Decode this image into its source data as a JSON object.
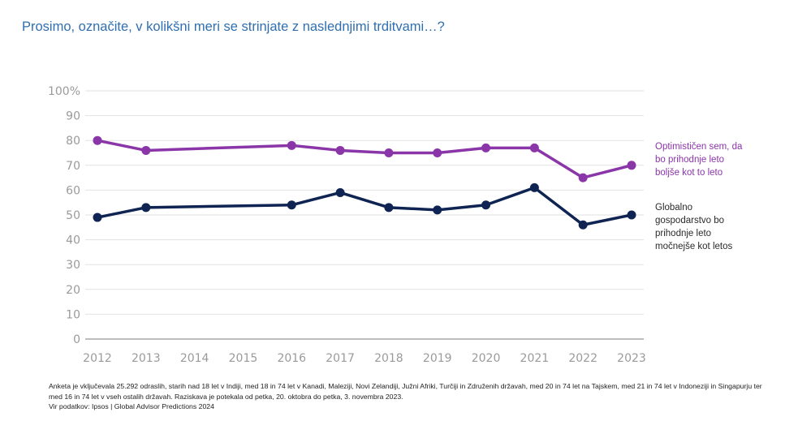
{
  "title": "Prosimo, označite, v kolikšni meri se strinjate z naslednjimi trditvami…?",
  "chart_data": {
    "type": "line",
    "categories": [
      "2012",
      "2013",
      "2014",
      "2015",
      "2016",
      "2017",
      "2018",
      "2019",
      "2020",
      "2021",
      "2022",
      "2023"
    ],
    "y_ticks": [
      "0",
      "10",
      "20",
      "30",
      "40",
      "50",
      "60",
      "70",
      "80",
      "90",
      "100%"
    ],
    "ylim": [
      0,
      100
    ],
    "grid": true,
    "series": [
      {
        "name": "Optimističen sem, da bo prihodnje leto boljše kot to leto",
        "color": "#8a35a8",
        "points": [
          [
            0,
            80
          ],
          [
            1,
            76
          ],
          [
            4,
            78
          ],
          [
            5,
            76
          ],
          [
            6,
            75
          ],
          [
            7,
            75
          ],
          [
            8,
            77
          ],
          [
            9,
            77
          ],
          [
            10,
            65
          ],
          [
            11,
            70
          ]
        ]
      },
      {
        "name": "Globalno gospodarstvo bo prihodnje leto močnejše kot letos",
        "color": "#0f2452",
        "points": [
          [
            0,
            49
          ],
          [
            1,
            53
          ],
          [
            4,
            54
          ],
          [
            5,
            59
          ],
          [
            6,
            53
          ],
          [
            7,
            52
          ],
          [
            8,
            54
          ],
          [
            9,
            61
          ],
          [
            10,
            46
          ],
          [
            11,
            50
          ]
        ]
      }
    ]
  },
  "legend": {
    "optimist": "Optimističen sem, da bo prihodnje leto boljše kot to leto",
    "economy": "Globalno gospodarstvo bo prihodnje leto močnejše kot letos"
  },
  "footnote": {
    "line1": "Anketa je vključevala 25.292 odraslih, starih nad 18 let v Indiji, med 18 in 74 let v Kanadi, Maleziji, Novi Zelandiji, Južni Afriki, Turčiji in Združenih državah, med 20 in 74 let na Tajskem, med 21 in 74 let v Indoneziji in Singapurju ter med 16 in 74 let v vseh ostalih državah. Raziskava je potekala od petka, 20. oktobra do petka, 3. novembra 2023.",
    "line2": "Vir podatkov: Ipsos | Global Advisor Predictions 2024"
  }
}
